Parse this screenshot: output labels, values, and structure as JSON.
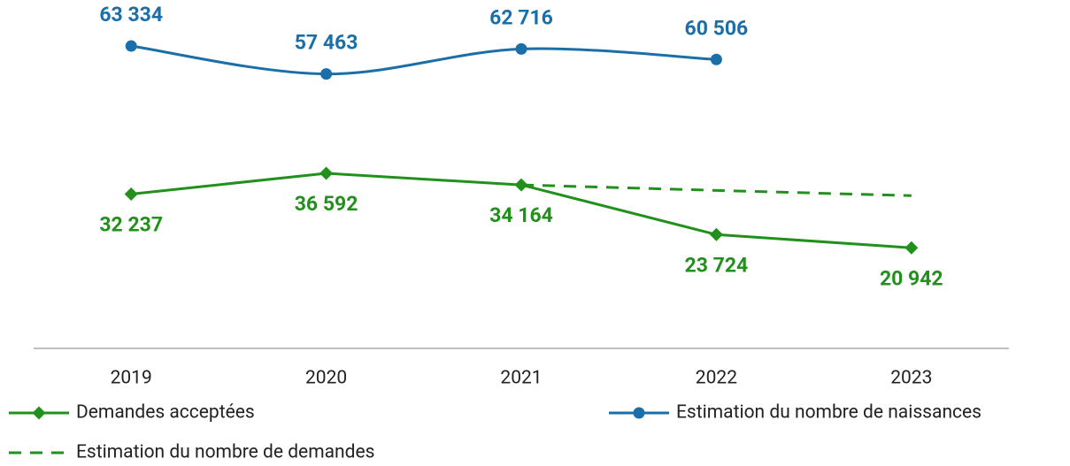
{
  "chart_data": {
    "type": "line",
    "categories": [
      "2019",
      "2020",
      "2021",
      "2022",
      "2023"
    ],
    "series": [
      {
        "name": "Demandes acceptées",
        "color": "#22901c",
        "marker": "diamond",
        "smooth": false,
        "dash": false,
        "label_side": "below",
        "values": [
          32237,
          36592,
          34164,
          23724,
          20942
        ],
        "value_labels": [
          "32 237",
          "36 592",
          "34 164",
          "23 724",
          "20 942"
        ]
      },
      {
        "name": "Estimation du nombre de naissances",
        "color": "#1b6fa8",
        "marker": "circle",
        "smooth": true,
        "dash": false,
        "label_side": "above",
        "values": [
          63334,
          57463,
          62716,
          60506,
          null
        ],
        "value_labels": [
          "63 334",
          "57 463",
          "62 716",
          "60 506",
          null
        ]
      },
      {
        "name": "Estimation du nombre de demandes",
        "color": "#22901c",
        "marker": "none",
        "smooth": false,
        "dash": true,
        "values": [
          null,
          null,
          34164,
          33000,
          31900
        ]
      }
    ],
    "ylim": [
      0,
      73000
    ],
    "grid": false
  }
}
